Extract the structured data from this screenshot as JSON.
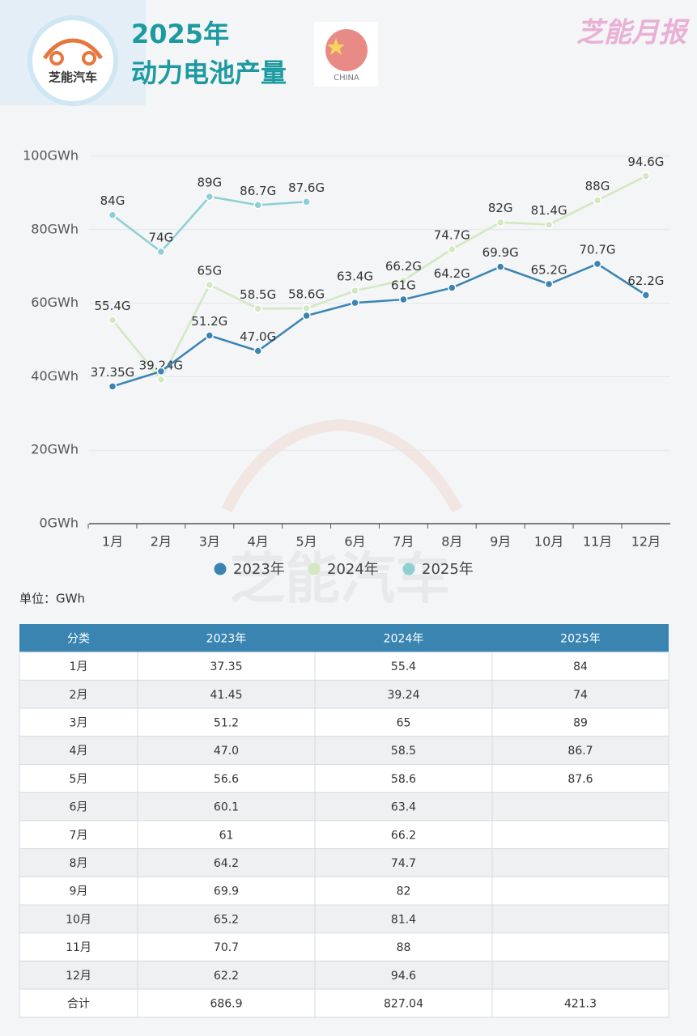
{
  "header": {
    "logo_text": "芝能汽车",
    "title_line1": "2025年",
    "title_line2": "动力电池产量",
    "flag_label": "CHINA",
    "brand": "芝能月报"
  },
  "chart_data": {
    "type": "line",
    "categories": [
      "1月",
      "2月",
      "3月",
      "4月",
      "5月",
      "6月",
      "7月",
      "8月",
      "9月",
      "10月",
      "11月",
      "12月"
    ],
    "series": [
      {
        "name": "2023年",
        "color": "#3a84b2",
        "values": [
          37.35,
          41.45,
          51.2,
          47.0,
          56.6,
          60.1,
          61,
          64.2,
          69.9,
          65.2,
          70.7,
          62.2
        ],
        "value_labels": [
          "37.35G",
          null,
          "51.2G",
          "47.0G",
          null,
          null,
          "61G",
          "64.2G",
          "69.9G",
          "65.2G",
          "70.7G",
          "62.2G"
        ]
      },
      {
        "name": "2024年",
        "color": "#d3e8c0",
        "values": [
          55.4,
          39.24,
          65,
          58.5,
          58.6,
          63.4,
          66.2,
          74.7,
          82,
          81.4,
          88,
          94.6
        ],
        "value_labels": [
          "55.4G",
          "39.24G",
          "65G",
          "58.5G",
          "58.6G",
          "63.4G",
          "66.2G",
          "74.7G",
          "82G",
          "81.4G",
          "88G",
          "94.6G"
        ]
      },
      {
        "name": "2025年",
        "color": "#8dcfd2",
        "values": [
          84,
          74,
          89,
          86.7,
          87.6,
          null,
          null,
          null,
          null,
          null,
          null,
          null
        ],
        "value_labels": [
          "84G",
          "74G",
          "89G",
          "86.7G",
          "87.6G",
          null,
          null,
          null,
          null,
          null,
          null,
          null
        ]
      }
    ],
    "ylim": [
      0,
      100
    ],
    "yticks": [
      {
        "value": 0,
        "label": "0GWh"
      },
      {
        "value": 20,
        "label": "20GWh"
      },
      {
        "value": 40,
        "label": "40GWh"
      },
      {
        "value": 60,
        "label": "60GWh"
      },
      {
        "value": 80,
        "label": "80GWh"
      },
      {
        "value": 100,
        "label": "100GWh"
      }
    ],
    "grid": true,
    "legend": "bottom",
    "unit_note": "单位：GWh"
  },
  "watermark": "芝能汽车",
  "table": {
    "header": [
      "分类",
      "2023年",
      "2024年",
      "2025年"
    ],
    "rows": [
      [
        "1月",
        "37.35",
        "55.4",
        "84"
      ],
      [
        "2月",
        "41.45",
        "39.24",
        "74"
      ],
      [
        "3月",
        "51.2",
        "65",
        "89"
      ],
      [
        "4月",
        "47.0",
        "58.5",
        "86.7"
      ],
      [
        "5月",
        "56.6",
        "58.6",
        "87.6"
      ],
      [
        "6月",
        "60.1",
        "63.4"
      ],
      [
        "7月",
        "61",
        "66.2"
      ],
      [
        "8月",
        "64.2",
        "74.7"
      ],
      [
        "9月",
        "69.9",
        "82"
      ],
      [
        "10月",
        "65.2",
        "81.4"
      ],
      [
        "11月",
        "70.7",
        "88"
      ],
      [
        "12月",
        "62.2",
        "94.6"
      ],
      [
        "合计",
        "686.9",
        "827.04",
        "421.3"
      ]
    ]
  }
}
